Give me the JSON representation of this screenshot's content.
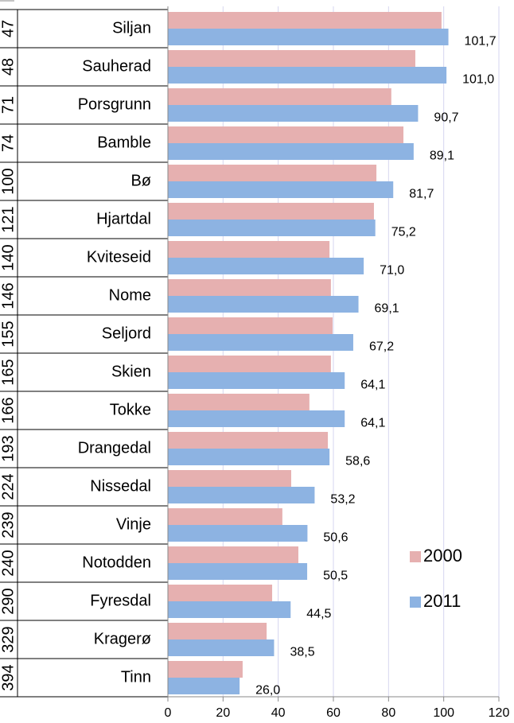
{
  "chart_data": {
    "type": "bar",
    "orientation": "horizontal",
    "ranks": [
      47,
      48,
      71,
      74,
      100,
      121,
      140,
      146,
      155,
      165,
      166,
      193,
      224,
      239,
      240,
      290,
      329,
      394
    ],
    "categories": [
      "Siljan",
      "Sauherad",
      "Porsgrunn",
      "Bamble",
      "Bø",
      "Hjartdal",
      "Kviteseid",
      "Nome",
      "Seljord",
      "Skien",
      "Tokke",
      "Drangedal",
      "Nissedal",
      "Vinje",
      "Notodden",
      "Fyresdal",
      "Kragerø",
      "Tinn"
    ],
    "series": [
      {
        "name": "2000",
        "color": "#e6b0b0",
        "values": [
          99.2,
          89.7,
          81.0,
          85.4,
          75.6,
          74.7,
          58.6,
          59.1,
          59.7,
          59.1,
          51.3,
          58.0,
          44.7,
          41.5,
          47.3,
          37.8,
          35.8,
          27.1
        ]
      },
      {
        "name": "2011",
        "color": "#8db3e2",
        "values": [
          101.7,
          101.0,
          90.7,
          89.1,
          81.7,
          75.2,
          71.0,
          69.1,
          67.2,
          64.1,
          64.1,
          58.6,
          53.2,
          50.6,
          50.5,
          44.5,
          38.5,
          26.0
        ],
        "value_labels": [
          "101,7",
          "101,0",
          "90,7",
          "89,1",
          "81,7",
          "75,2",
          "71,0",
          "69,1",
          "67,2",
          "64,1",
          "64,1",
          "58,6",
          "53,2",
          "50,6",
          "50,5",
          "44,5",
          "38,5",
          "26,0"
        ]
      }
    ],
    "xlim": [
      0,
      120
    ],
    "xticks": [
      0,
      20,
      40,
      60,
      80,
      100,
      120
    ],
    "grid": true,
    "legend": "lower right"
  }
}
